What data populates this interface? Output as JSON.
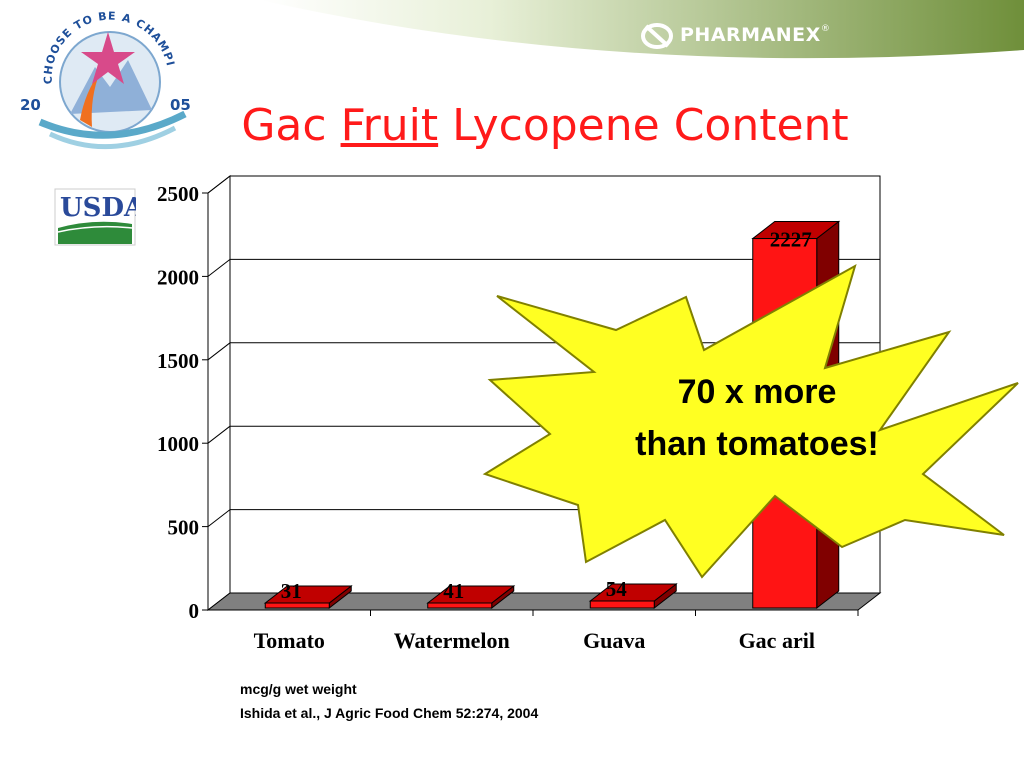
{
  "header": {
    "badge_top_text": "CHOOSE TO BE A CHAMPION",
    "badge_year_left": "20",
    "badge_year_right": "05",
    "brand": "PHARMANEX",
    "brand_mark": "®",
    "usda": "USDA"
  },
  "title": {
    "part1": "Gac",
    "part2": "Fruit",
    "part3": "Lycopene Content"
  },
  "callout": {
    "line1": "70 x more",
    "line2": "than tomatoes!"
  },
  "footnotes": {
    "units": "mcg/g wet weight",
    "source": "Ishida et al., J Agric Food Chem 52:274, 2004"
  },
  "colors": {
    "bar_front": "#ff1414",
    "bar_side": "#800000",
    "bar_top": "#c00000",
    "title": "#ff1a1a",
    "callout_fill": "#ffff22"
  },
  "chart_data": {
    "type": "bar",
    "style": "3d",
    "categories": [
      "Tomato",
      "Watermelon",
      "Guava",
      "Gac aril"
    ],
    "values": [
      31,
      41,
      54,
      2227
    ],
    "data_labels": [
      "31",
      "41",
      "54",
      "2227"
    ],
    "ylim": [
      0,
      2500
    ],
    "yticks": [
      0,
      500,
      1000,
      1500,
      2000,
      2500
    ],
    "ytick_labels": [
      "0",
      "500",
      "1000",
      "1500",
      "2000",
      "2500"
    ],
    "grid": true,
    "legend": "none"
  }
}
